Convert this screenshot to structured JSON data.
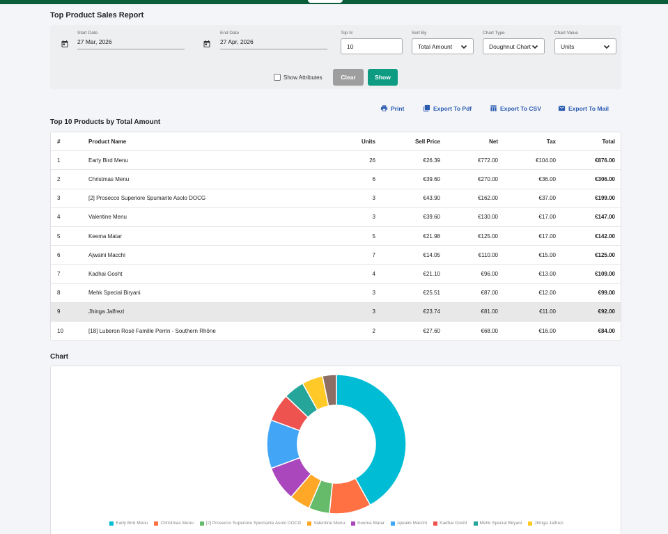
{
  "page": {
    "title": "Top Product Sales Report"
  },
  "filters": {
    "start_date_label": "Start Date",
    "start_date_value": "27 Mar, 2026",
    "end_date_label": "End Date",
    "end_date_value": "27 Apr, 2026",
    "topn_label": "Top N",
    "topn_value": "10",
    "sort_label": "Sort By",
    "sort_value": "Total Amount",
    "chart_type_label": "Chart Type",
    "chart_type_value": "Doughnut Chart",
    "chart_value_label": "Chart Value",
    "chart_value_value": "Units",
    "show_attributes_label": "Show Attributes",
    "clear_label": "Clear",
    "show_label": "Show"
  },
  "actions": {
    "print": "Print",
    "export_pdf": "Export To Pdf",
    "export_csv": "Export To CSV",
    "export_mail": "Export To Mail"
  },
  "table": {
    "title": "Top 10 Products by Total Amount",
    "headers": {
      "idx": "#",
      "name": "Product Name",
      "units": "Units",
      "sell": "Sell Price",
      "net": "Net",
      "tax": "Tax",
      "total": "Total"
    },
    "rows": [
      {
        "idx": "1",
        "name": "Early Bird Menu",
        "units": "26",
        "sell": "€26.39",
        "net": "€772.00",
        "tax": "€104.00",
        "total": "€876.00"
      },
      {
        "idx": "2",
        "name": "Christmas Menu",
        "units": "6",
        "sell": "€39.60",
        "net": "€270.00",
        "tax": "€36.00",
        "total": "€306.00"
      },
      {
        "idx": "3",
        "name": "[2] Prosecco Superiore Spumante Asolo DOCG",
        "units": "3",
        "sell": "€43.90",
        "net": "€162.00",
        "tax": "€37.00",
        "total": "€199.00"
      },
      {
        "idx": "4",
        "name": "Valentine Menu",
        "units": "3",
        "sell": "€39.60",
        "net": "€130.00",
        "tax": "€17.00",
        "total": "€147.00"
      },
      {
        "idx": "5",
        "name": "Keema Matar",
        "units": "5",
        "sell": "€21.98",
        "net": "€125.00",
        "tax": "€17.00",
        "total": "€142.00"
      },
      {
        "idx": "6",
        "name": "Ajwaini Macchi",
        "units": "7",
        "sell": "€14.05",
        "net": "€110.00",
        "tax": "€15.00",
        "total": "€125.00"
      },
      {
        "idx": "7",
        "name": "Kadhai Gosht",
        "units": "4",
        "sell": "€21.10",
        "net": "€96.00",
        "tax": "€13.00",
        "total": "€109.00"
      },
      {
        "idx": "8",
        "name": "Mehk Special Biryani",
        "units": "3",
        "sell": "€25.51",
        "net": "€87.00",
        "tax": "€12.00",
        "total": "€99.00"
      },
      {
        "idx": "9",
        "name": "Jhinga Jalfrezi",
        "units": "3",
        "sell": "€23.74",
        "net": "€81.00",
        "tax": "€11.00",
        "total": "€92.00"
      },
      {
        "idx": "10",
        "name": "[18] Luberon Rosé Famille Perrin - Southern Rhône",
        "units": "2",
        "sell": "€27.60",
        "net": "€68.00",
        "tax": "€16.00",
        "total": "€84.00"
      }
    ],
    "highlighted_row": 9
  },
  "chart_section": {
    "title": "Chart"
  },
  "chart_data": {
    "type": "pie",
    "donut": true,
    "categories": [
      "Early Bird Menu",
      "Christmas Menu",
      "[2] Prosecco Superiore Spumante Asolo DOCG",
      "Valentine Menu",
      "Keema Matar",
      "Ajwaini Macchi",
      "Kadhai Gosht",
      "Mehk Special Biryani",
      "Jhinga Jalfrezi",
      "[18] Luberon Rosé Famille Perrin - Southern Rhône"
    ],
    "values": [
      26,
      6,
      3,
      3,
      5,
      7,
      4,
      3,
      3,
      2
    ],
    "colors": [
      "#00bcd4",
      "#ff7043",
      "#66bb6a",
      "#ffa726",
      "#ab47bc",
      "#42a5f5",
      "#ef5350",
      "#26a69a",
      "#ffca28",
      "#8d6e63"
    ],
    "legend_visible_count": 9,
    "legend_position": "bottom"
  },
  "colors": {
    "brand_green": "#0b5e3a",
    "show_button": "#0d9b82",
    "clear_button": "#9e9e9e",
    "action_link": "#2a5bb0"
  }
}
